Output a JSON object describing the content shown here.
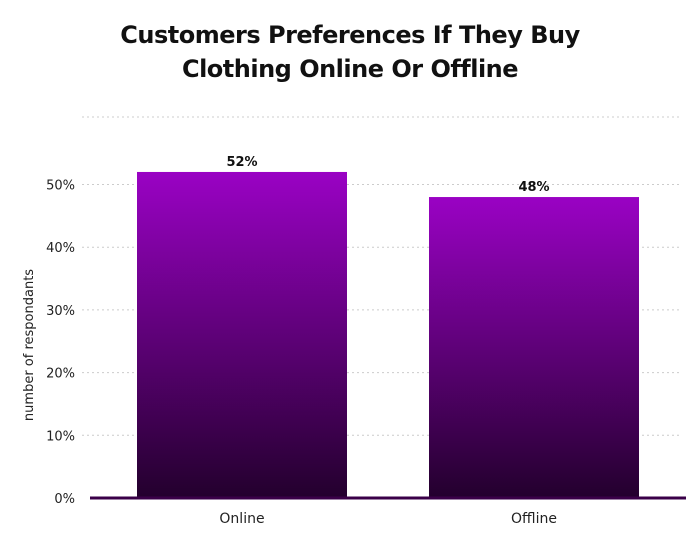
{
  "chart_data": {
    "type": "bar",
    "title": "Customers Preferences If They Buy Clothing Online Or Offline",
    "xlabel": "",
    "ylabel": "number of respondants",
    "categories": [
      "Online",
      "Offline"
    ],
    "values": [
      52,
      48
    ],
    "data_labels": [
      "52%",
      "48%"
    ],
    "yticks": [
      "0%",
      "10%",
      "20%",
      "30%",
      "40%",
      "50%"
    ],
    "ytick_values": [
      0,
      10,
      20,
      30,
      40,
      50
    ],
    "ylim": [
      0,
      62
    ],
    "grid": true,
    "legend": "none",
    "colors": {
      "bar_top": "#9a02c4",
      "bar_bottom": "#23002d",
      "axis": "#3a0048",
      "grid": "#cccccc",
      "text": "#222222"
    }
  }
}
